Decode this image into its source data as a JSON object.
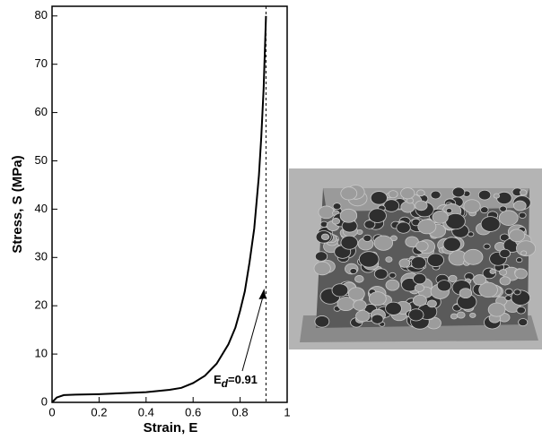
{
  "chart_data": {
    "type": "line",
    "x": [
      0,
      0.02,
      0.05,
      0.1,
      0.2,
      0.3,
      0.4,
      0.5,
      0.55,
      0.6,
      0.65,
      0.7,
      0.75,
      0.78,
      0.8,
      0.82,
      0.84,
      0.86,
      0.88,
      0.89,
      0.9,
      0.91
    ],
    "values": [
      0,
      1,
      1.5,
      1.6,
      1.7,
      1.9,
      2.1,
      2.6,
      3,
      4,
      5.5,
      8,
      12,
      15.5,
      19,
      23,
      29,
      36,
      47,
      55,
      65,
      80
    ],
    "color": "#000000",
    "xlabel": "Strain, E",
    "ylabel": "Stress, S (MPa)",
    "xlim": [
      0,
      1
    ],
    "xticks": [
      0,
      0.2,
      0.4,
      0.6,
      0.8,
      1
    ],
    "ylim": [
      0,
      82
    ],
    "yticks": [
      0,
      10,
      20,
      30,
      40,
      50,
      60,
      70,
      80
    ],
    "vline": {
      "value": 0.91,
      "label": [
        "E",
        "d",
        "=0.91"
      ]
    }
  }
}
